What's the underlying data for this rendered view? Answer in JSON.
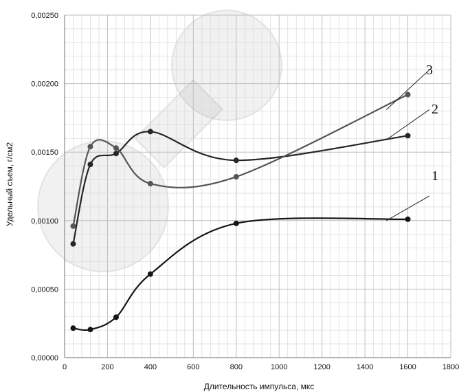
{
  "chart_data": {
    "type": "line",
    "title": "",
    "xlabel": "Длительность импульса, мкс",
    "ylabel": "Удельный съем, г/см2",
    "xlim": [
      0,
      1800
    ],
    "ylim": [
      0,
      0.0025
    ],
    "x_ticks": [
      "0",
      "200",
      "400",
      "600",
      "800",
      "1000",
      "1200",
      "1400",
      "1600",
      "1800"
    ],
    "y_ticks": [
      "0,00000",
      "0,00050",
      "0,00100",
      "0,00150",
      "0,00200",
      "0,00250"
    ],
    "grid": true,
    "series": [
      {
        "name": "1",
        "color": "#151515",
        "x": [
          40,
          120,
          240,
          400,
          800,
          1600
        ],
        "y": [
          0.000215,
          0.000205,
          0.000295,
          0.00061,
          0.00098,
          0.00101
        ]
      },
      {
        "name": "2",
        "color": "#262626",
        "x": [
          40,
          120,
          240,
          400,
          800,
          1600
        ],
        "y": [
          0.00083,
          0.00141,
          0.00149,
          0.00165,
          0.00144,
          0.00162
        ]
      },
      {
        "name": "3",
        "color": "#555555",
        "x": [
          40,
          120,
          240,
          400,
          800,
          1600
        ],
        "y": [
          0.00096,
          0.00154,
          0.00153,
          0.00127,
          0.00132,
          0.00192
        ]
      }
    ]
  }
}
